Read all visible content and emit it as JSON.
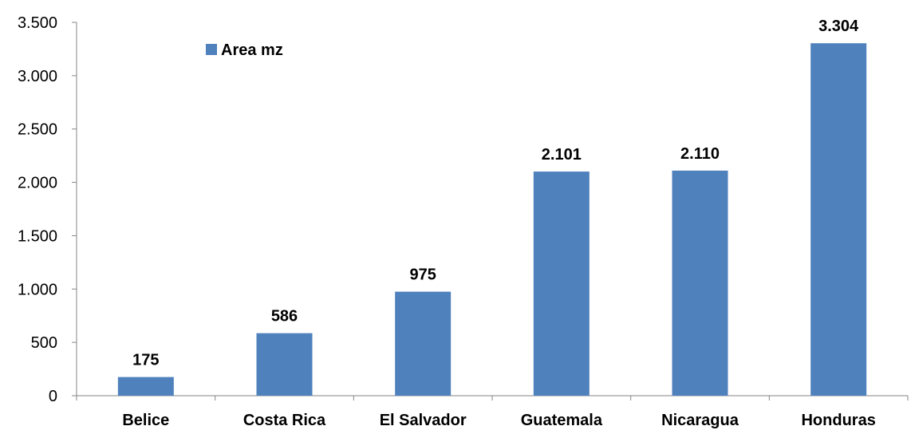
{
  "chart_data": {
    "type": "bar",
    "title": "",
    "xlabel": "",
    "ylabel": "",
    "categories": [
      "Belice",
      "Costa Rica",
      "El Salvador",
      "Guatemala",
      "Nicaragua",
      "Honduras"
    ],
    "series": [
      {
        "name": "Area mz",
        "values": [
          175,
          586,
          975,
          2101,
          2110,
          3304
        ],
        "value_labels": [
          "175",
          "586",
          "975",
          "2.101",
          "2.110",
          "3.304"
        ],
        "color": "#4F81BD"
      }
    ],
    "ylim": [
      0,
      3500
    ],
    "yticks": [
      0,
      500,
      1000,
      1500,
      2000,
      2500,
      3000,
      3500
    ],
    "ytick_labels": [
      "0",
      "500",
      "1.000",
      "1.500",
      "2.000",
      "2.500",
      "3.000",
      "3.500"
    ],
    "grid": false,
    "legend_position": "top-left inside plot area"
  }
}
